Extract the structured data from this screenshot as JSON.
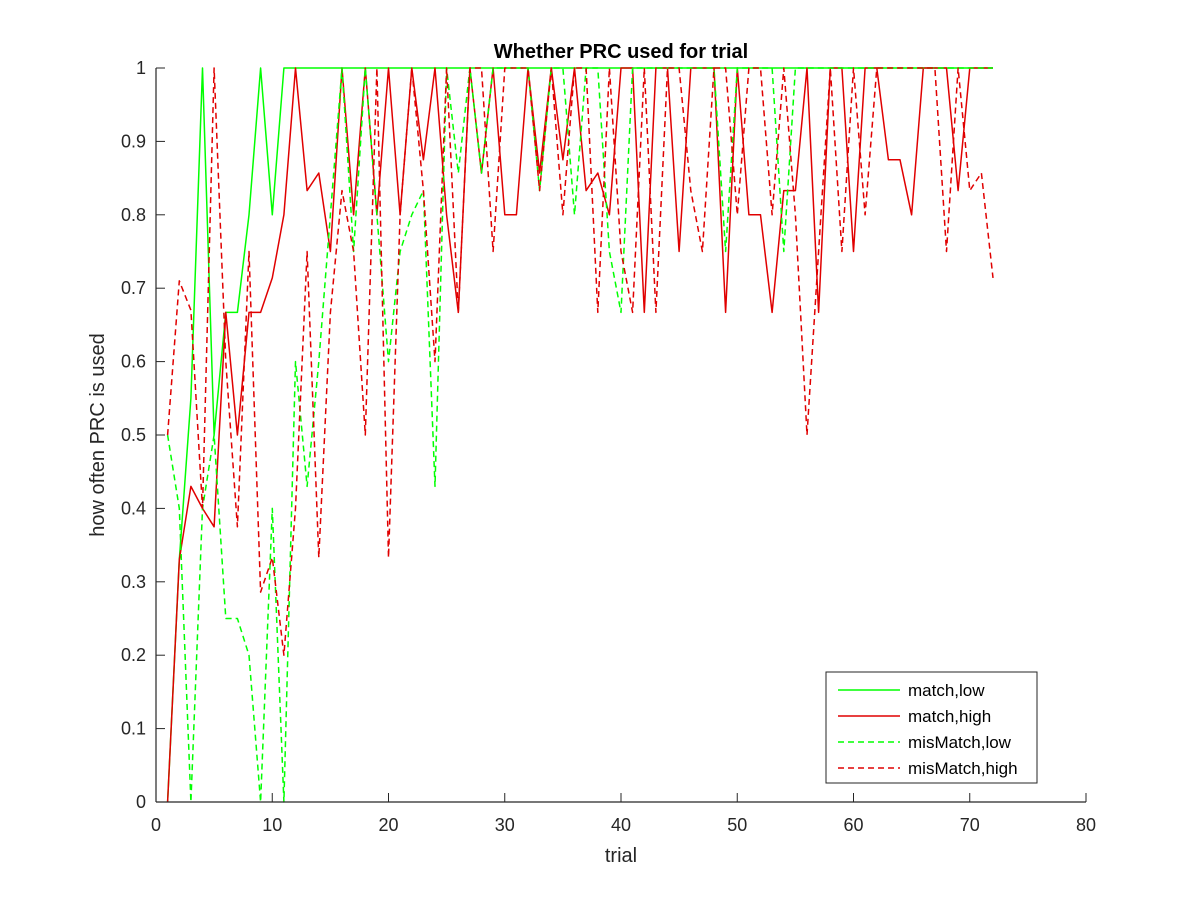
{
  "chart_data": {
    "type": "line",
    "title": "Whether PRC used for trial",
    "xlabel": "trial",
    "ylabel": "how often PRC is used",
    "xlim": [
      0,
      80
    ],
    "ylim": [
      0,
      1
    ],
    "xticks": [
      0,
      10,
      20,
      30,
      40,
      50,
      60,
      70,
      80
    ],
    "yticks": [
      0,
      0.1,
      0.2,
      0.3,
      0.4,
      0.5,
      0.6,
      0.7,
      0.8,
      0.9,
      1
    ],
    "grid": false,
    "legend_position": "bottom-right",
    "series": [
      {
        "name": "match,low",
        "color": "#00ff00",
        "style": "solid",
        "x": [
          1,
          2,
          3,
          4,
          5,
          6,
          7,
          8,
          9,
          10,
          11,
          12,
          13,
          14,
          15,
          16,
          17,
          18,
          19,
          20,
          21,
          22,
          23,
          24,
          25,
          26,
          27,
          28,
          29,
          30,
          31,
          32,
          33,
          34,
          35,
          36,
          37,
          38,
          39,
          40,
          41,
          42,
          43,
          44,
          45,
          46,
          47,
          48,
          49,
          50,
          51,
          52,
          53,
          54,
          55,
          56,
          57,
          58,
          59,
          60,
          61,
          62,
          63,
          64,
          65,
          66,
          67,
          68,
          69,
          70,
          71,
          72
        ],
        "y": [
          0,
          0.33,
          0.55,
          1,
          0.5,
          0.667,
          0.667,
          0.8,
          1,
          0.8,
          1,
          1,
          1,
          1,
          1,
          1,
          1,
          1,
          1,
          1,
          1,
          1,
          1,
          1,
          1,
          1,
          1,
          1,
          1,
          1,
          1,
          1,
          1,
          1,
          1,
          1,
          1,
          1,
          1,
          1,
          1,
          1,
          1,
          1,
          1,
          1,
          1,
          1,
          1,
          1,
          1,
          1,
          1,
          1,
          1,
          1,
          1,
          1,
          1,
          1,
          1,
          1,
          1,
          1,
          1,
          1,
          1,
          1,
          1,
          1,
          1,
          1
        ]
      },
      {
        "name": "match,high",
        "color": "#e00000",
        "style": "solid",
        "x": [
          1,
          2,
          3,
          4,
          5,
          6,
          7,
          8,
          9,
          10,
          11,
          12,
          13,
          14,
          15,
          16,
          17,
          18,
          19,
          20,
          21,
          22,
          23,
          24,
          25,
          26,
          27,
          28,
          29,
          30,
          31,
          32,
          33,
          34,
          35,
          36,
          37,
          38,
          39,
          40,
          41,
          42,
          43,
          44,
          45,
          46,
          47,
          48,
          49,
          50,
          51,
          52,
          53,
          54,
          55,
          56,
          57,
          58,
          59,
          60,
          61,
          62,
          63,
          64,
          65,
          66,
          67,
          68,
          69,
          70,
          71,
          72
        ],
        "y": [
          0,
          0.33,
          0.43,
          0.4,
          0.375,
          0.667,
          0.5,
          0.667,
          0.667,
          0.714,
          0.8,
          1,
          0.833,
          0.857,
          0.75,
          1,
          0.8,
          1,
          0.8,
          1,
          0.8,
          1,
          0.875,
          1,
          0.8,
          0.667,
          1,
          0.857,
          1,
          0.8,
          0.8,
          1,
          0.857,
          1,
          0.875,
          1,
          0.833,
          0.857,
          0.8,
          1,
          1,
          0.667,
          1,
          1,
          0.75,
          1,
          1,
          1,
          0.667,
          1,
          0.8,
          0.8,
          0.667,
          0.833,
          0.833,
          1,
          0.667,
          1,
          1,
          0.75,
          1,
          1,
          0.875,
          0.875,
          0.8,
          1,
          1,
          1,
          0.833,
          1,
          1,
          1
        ]
      },
      {
        "name": "misMatch,low",
        "color": "#00ff00",
        "style": "dashed",
        "x": [
          1,
          2,
          3,
          4,
          5,
          6,
          7,
          8,
          9,
          10,
          11,
          12,
          13,
          14,
          15,
          16,
          17,
          18,
          19,
          20,
          21,
          22,
          23,
          24,
          25,
          26,
          27,
          28,
          29,
          30,
          31,
          32,
          33,
          34,
          35,
          36,
          37,
          38,
          39,
          40,
          41,
          42,
          43,
          44,
          45,
          46,
          47,
          48,
          49,
          50,
          51,
          52,
          53,
          54,
          55,
          56,
          57,
          58,
          59,
          60,
          61,
          62,
          63,
          64,
          65,
          66,
          67,
          68,
          69,
          70,
          71,
          72
        ],
        "y": [
          0.5,
          0.4,
          0,
          0.4,
          0.5,
          0.25,
          0.25,
          0.2,
          0,
          0.4,
          0,
          0.6,
          0.43,
          0.6,
          0.8,
          1,
          0.75,
          1,
          0.8,
          0.6,
          0.75,
          0.8,
          0.833,
          0.43,
          1,
          0.857,
          1,
          0.857,
          1,
          1,
          1,
          1,
          0.833,
          1,
          1,
          0.8,
          1,
          1,
          0.75,
          0.667,
          1,
          1,
          1,
          1,
          1,
          1,
          1,
          1,
          0.75,
          1,
          1,
          1,
          1,
          0.75,
          1,
          1,
          1,
          1,
          1,
          1,
          1,
          1,
          1,
          1,
          1,
          1,
          1,
          1,
          1,
          1,
          1,
          1
        ]
      },
      {
        "name": "misMatch,high",
        "color": "#e00000",
        "style": "dashed",
        "x": [
          1,
          2,
          3,
          4,
          5,
          6,
          7,
          8,
          9,
          10,
          11,
          12,
          13,
          14,
          15,
          16,
          17,
          18,
          19,
          20,
          21,
          22,
          23,
          24,
          25,
          26,
          27,
          28,
          29,
          30,
          31,
          32,
          33,
          34,
          35,
          36,
          37,
          38,
          39,
          40,
          41,
          42,
          43,
          44,
          45,
          46,
          47,
          48,
          49,
          50,
          51,
          52,
          53,
          54,
          55,
          56,
          57,
          58,
          59,
          60,
          61,
          62,
          63,
          64,
          65,
          66,
          67,
          68,
          69,
          70,
          71,
          72
        ],
        "y": [
          0.5,
          0.71,
          0.67,
          0.4,
          1,
          0.6,
          0.375,
          0.75,
          0.286,
          0.333,
          0.2,
          0.4,
          0.75,
          0.333,
          0.667,
          0.833,
          0.75,
          0.5,
          1,
          0.333,
          0.8,
          1,
          0.833,
          0.6,
          1,
          0.667,
          1,
          1,
          0.75,
          1,
          1,
          1,
          0.833,
          1,
          0.8,
          1,
          1,
          0.667,
          1,
          0.75,
          0.667,
          1,
          0.667,
          1,
          1,
          0.833,
          0.75,
          1,
          1,
          0.8,
          1,
          1,
          0.8,
          1,
          0.8,
          0.5,
          0.75,
          1,
          0.75,
          1,
          0.8,
          1,
          1,
          1,
          1,
          1,
          1,
          0.75,
          1,
          0.833,
          0.857,
          0.714
        ]
      }
    ]
  }
}
